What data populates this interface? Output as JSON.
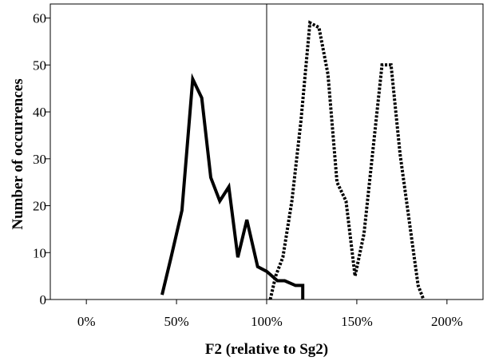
{
  "chart_data": {
    "type": "line",
    "xlabel": "F2 (relative to Sg2)",
    "ylabel": "Number of occurrences",
    "xlim": [
      -0.2,
      2.2
    ],
    "ylim": [
      0,
      63
    ],
    "x_ticks": [
      0,
      0.5,
      1.0,
      1.5,
      2.0
    ],
    "x_tick_labels": [
      "0%",
      "50%",
      "100%",
      "150%",
      "200%"
    ],
    "y_ticks": [
      0,
      10,
      20,
      30,
      40,
      50,
      60
    ],
    "y_tick_labels": [
      "0",
      "10",
      "20",
      "30",
      "40",
      "50",
      "60"
    ],
    "reference_line_x": 1.0,
    "grid": false,
    "series": [
      {
        "style": "solid",
        "color": "#000000",
        "x": [
          0.42,
          0.47,
          0.53,
          0.59,
          0.64,
          0.69,
          0.74,
          0.79,
          0.84,
          0.89,
          0.95,
          1.0,
          1.06,
          1.1,
          1.16,
          1.2,
          1.2
        ],
        "y": [
          1,
          9,
          19,
          47,
          43,
          26,
          21,
          24,
          9,
          17,
          7,
          6,
          4,
          4,
          3,
          3,
          0
        ]
      },
      {
        "style": "dotted",
        "color": "#000000",
        "x": [
          1.02,
          1.05,
          1.09,
          1.14,
          1.19,
          1.24,
          1.29,
          1.34,
          1.39,
          1.44,
          1.49,
          1.54,
          1.59,
          1.64,
          1.69,
          1.74,
          1.79,
          1.84,
          1.87
        ],
        "y": [
          0,
          5,
          9,
          21,
          38,
          59,
          58,
          48,
          25,
          21,
          5,
          14,
          32,
          50,
          50,
          31,
          17,
          3,
          0
        ]
      }
    ]
  }
}
